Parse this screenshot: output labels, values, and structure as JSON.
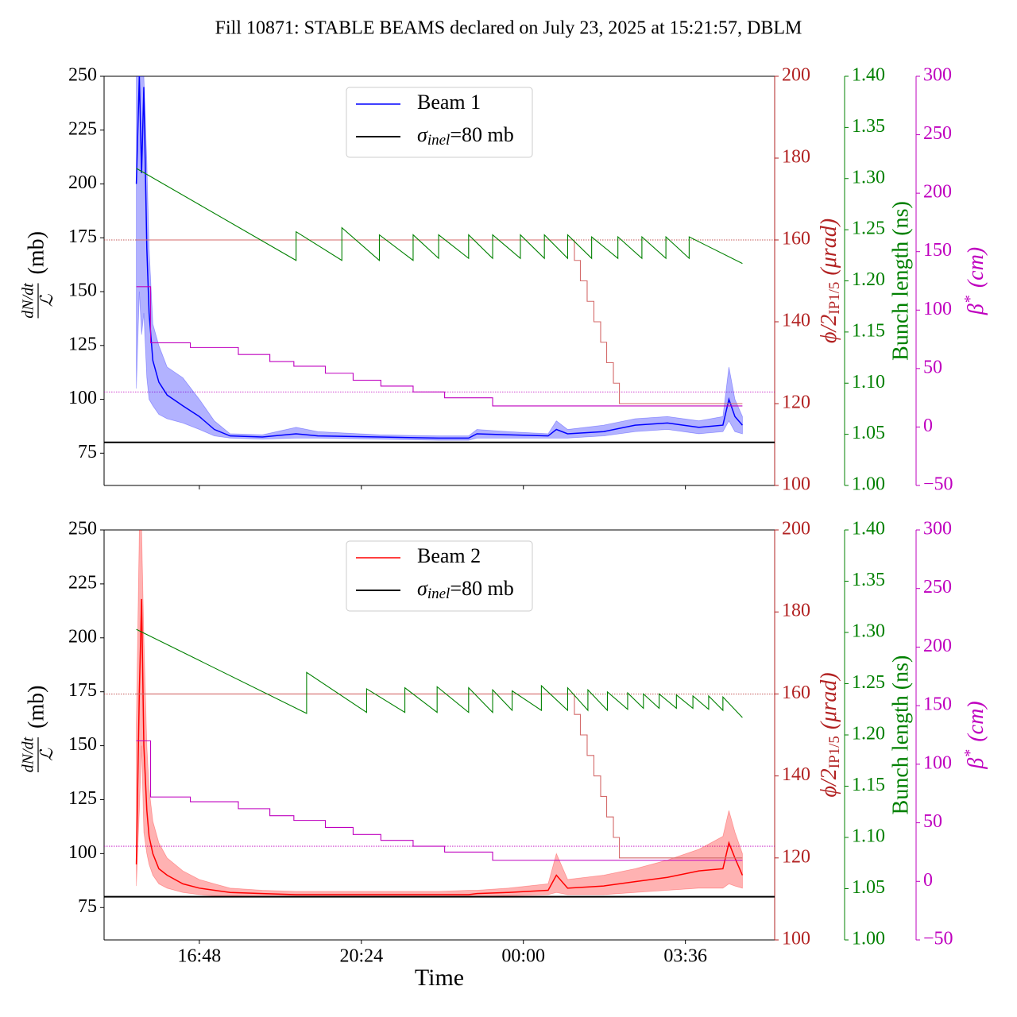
{
  "title": "Fill 10871: STABLE BEAMS declared on July 23, 2025 at 15:21:57, DBLM",
  "chart_data": [
    {
      "type": "line",
      "legend": "upper center",
      "ylabel": {
        "numerator": "dN/dt",
        "denominator": "ℒ",
        "unit": "(mb)"
      },
      "y2label": [
        "ϕ/2",
        "IP1/5",
        "(μrad)"
      ],
      "y3label": "Bunch length (ns)",
      "y4label": [
        "β",
        "*",
        "(cm)"
      ],
      "xlim": [
        "14:41",
        "05:35"
      ],
      "ylim": [
        60,
        250
      ],
      "yticks": [
        75,
        100,
        125,
        150,
        175,
        200,
        225,
        250
      ],
      "y2lim": [
        100,
        200
      ],
      "y2ticks": [
        100,
        120,
        140,
        160,
        180,
        200
      ],
      "y2color": "#b22222",
      "y3lim": [
        1.0,
        1.4
      ],
      "y3ticks": [
        {
          "value": 1.0,
          "label": "1.00"
        },
        {
          "value": 1.05,
          "label": "1.05"
        },
        {
          "value": 1.1,
          "label": "1.10"
        },
        {
          "value": 1.15,
          "label": "1.15"
        },
        {
          "value": 1.2,
          "label": "1.20"
        },
        {
          "value": 1.25,
          "label": "1.25"
        },
        {
          "value": 1.3,
          "label": "1.30"
        },
        {
          "value": 1.35,
          "label": "1.35"
        },
        {
          "value": 1.4,
          "label": "1.40"
        }
      ],
      "y3color": "#008000",
      "y4lim": [
        -50,
        300
      ],
      "y4ticks": [
        {
          "value": -50,
          "label": "−50"
        },
        0,
        50,
        100,
        150,
        200,
        250,
        300
      ],
      "y4color": "#bf00bf",
      "series": [
        {
          "name": "Beam 1",
          "color": "#0000ff",
          "x": [
            "15:24",
            "15:28",
            "15:31",
            "15:34",
            "15:38",
            "15:41",
            "15:46",
            "15:54",
            "16:05",
            "16:26",
            "16:48",
            "17:08",
            "17:29",
            "18:12",
            "18:57",
            "19:26",
            "20:48",
            "22:07",
            "22:47",
            "22:58",
            "23:40",
            "00:33",
            "00:44",
            "00:59",
            "01:47",
            "02:29",
            "03:12",
            "03:54",
            "04:26",
            "04:34",
            "04:42",
            "04:52"
          ],
          "values": [
            200,
            250,
            205,
            245,
            170,
            140,
            118,
            108,
            102,
            97,
            92,
            86,
            83,
            82.5,
            84,
            83,
            82.5,
            82,
            82,
            84,
            83.5,
            83,
            86,
            84,
            85,
            88,
            89,
            87,
            88,
            100,
            92,
            88
          ],
          "low": [
            105,
            150,
            130,
            140,
            110,
            100,
            97,
            93,
            91,
            89,
            86,
            83,
            82,
            81.5,
            82,
            82,
            81.5,
            81,
            81,
            82,
            82,
            82,
            82,
            82,
            83,
            85,
            86,
            84,
            85,
            90,
            85,
            84
          ],
          "high": [
            250,
            250,
            250,
            250,
            210,
            170,
            135,
            125,
            115,
            110,
            100,
            90,
            84,
            83.5,
            87,
            85,
            83.5,
            83,
            83,
            86,
            85,
            84,
            90,
            86,
            88,
            91,
            92,
            90,
            92,
            115,
            100,
            92
          ]
        },
        {
          "color": "#d46a6a",
          "axis": "y2",
          "step": true,
          "x": [
            "15:24",
            "00:59",
            "01:08",
            "01:16",
            "01:25",
            "01:34",
            "01:43",
            "01:51",
            "02:00",
            "02:08",
            "04:52"
          ],
          "values": [
            160,
            160,
            155,
            150,
            145,
            140,
            135,
            130,
            125,
            120,
            120
          ]
        },
        {
          "color": "#008000",
          "axis": "y3",
          "x": [
            "15:24",
            "18:57",
            "18:57",
            "19:58",
            "19:58",
            "20:48",
            "20:48",
            "21:33",
            "21:33",
            "22:07",
            "22:07",
            "22:47",
            "22:47",
            "23:19",
            "23:19",
            "23:56",
            "23:56",
            "00:28",
            "00:28",
            "00:59",
            "00:59",
            "01:31",
            "01:31",
            "02:06",
            "02:06",
            "02:38",
            "02:38",
            "03:10",
            "03:10",
            "03:41",
            "03:41",
            "04:52"
          ],
          "values": [
            1.31,
            1.22,
            1.248,
            1.22,
            1.252,
            1.22,
            1.245,
            1.22,
            1.245,
            1.222,
            1.245,
            1.222,
            1.245,
            1.222,
            1.245,
            1.222,
            1.245,
            1.222,
            1.245,
            1.222,
            1.245,
            1.222,
            1.243,
            1.222,
            1.243,
            1.222,
            1.243,
            1.222,
            1.243,
            1.222,
            1.243,
            1.217
          ]
        },
        {
          "color": "#bf00bf",
          "axis": "y4",
          "step": true,
          "x": [
            "15:24",
            "15:43",
            "16:36",
            "17:40",
            "18:22",
            "18:54",
            "19:36",
            "20:13",
            "20:50",
            "21:33",
            "22:15",
            "23:19",
            "04:52"
          ],
          "values": [
            120,
            72,
            68,
            62,
            56,
            52,
            46,
            40,
            35,
            30,
            25,
            18,
            18
          ]
        }
      ],
      "reference": {
        "name_parts": [
          "σ",
          "inel",
          "=80 mb"
        ],
        "value": 80,
        "color": "#000000"
      },
      "hlines": [
        {
          "axis": "y2",
          "value": 160,
          "color": "#b22222"
        },
        {
          "axis": "y4",
          "value": 30,
          "color": "#bf00bf"
        }
      ]
    },
    {
      "type": "line",
      "legend": "upper center",
      "ylabel": {
        "numerator": "dN/dt",
        "denominator": "ℒ",
        "unit": "(mb)"
      },
      "y2label": [
        "ϕ/2",
        "IP1/5",
        "(μrad)"
      ],
      "y3label": "Bunch length (ns)",
      "y4label": [
        "β",
        "*",
        "(cm)"
      ],
      "xlabel": "Time",
      "xlim": [
        "14:41",
        "05:35"
      ],
      "xticks": [
        "16:48",
        "20:24",
        "00:00",
        "03:36"
      ],
      "ylim": [
        60,
        250
      ],
      "yticks": [
        75,
        100,
        125,
        150,
        175,
        200,
        225,
        250
      ],
      "y2lim": [
        100,
        200
      ],
      "y2ticks": [
        100,
        120,
        140,
        160,
        180,
        200
      ],
      "y2color": "#b22222",
      "y3lim": [
        1.0,
        1.4
      ],
      "y3ticks": [
        {
          "value": 1.0,
          "label": "1.00"
        },
        {
          "value": 1.05,
          "label": "1.05"
        },
        {
          "value": 1.1,
          "label": "1.10"
        },
        {
          "value": 1.15,
          "label": "1.15"
        },
        {
          "value": 1.2,
          "label": "1.20"
        },
        {
          "value": 1.25,
          "label": "1.25"
        },
        {
          "value": 1.3,
          "label": "1.30"
        },
        {
          "value": 1.35,
          "label": "1.35"
        },
        {
          "value": 1.4,
          "label": "1.40"
        }
      ],
      "y3color": "#008000",
      "y4lim": [
        -50,
        300
      ],
      "y4ticks": [
        {
          "value": -50,
          "label": "−50"
        },
        0,
        50,
        100,
        150,
        200,
        250,
        300
      ],
      "y4color": "#bf00bf",
      "series": [
        {
          "name": "Beam 2",
          "color": "#ff0000",
          "x": [
            "15:24",
            "15:28",
            "15:31",
            "15:34",
            "15:38",
            "15:41",
            "15:46",
            "15:54",
            "16:05",
            "16:26",
            "16:48",
            "17:08",
            "17:29",
            "18:12",
            "18:57",
            "19:26",
            "20:48",
            "22:07",
            "22:47",
            "22:58",
            "23:40",
            "00:33",
            "00:44",
            "00:59",
            "01:47",
            "02:29",
            "03:12",
            "03:54",
            "04:26",
            "04:34",
            "04:42",
            "04:52"
          ],
          "values": [
            95,
            175,
            218,
            150,
            120,
            108,
            100,
            93,
            90,
            86,
            84,
            83,
            82,
            81.5,
            81,
            81,
            81,
            81,
            81,
            81.5,
            82,
            83,
            90,
            84,
            85,
            87,
            89,
            92,
            93,
            105,
            98,
            90
          ],
          "low": [
            85,
            120,
            150,
            110,
            100,
            95,
            90,
            86,
            84,
            82,
            81,
            80.5,
            80.5,
            80,
            80,
            80,
            80,
            80,
            80,
            80,
            80.5,
            81,
            82,
            81,
            81,
            82,
            83,
            84,
            84,
            86,
            85,
            84
          ],
          "high": [
            160,
            250,
            250,
            200,
            150,
            130,
            115,
            105,
            98,
            92,
            88,
            86,
            84,
            83,
            82.5,
            82.5,
            82.5,
            82.5,
            83,
            83,
            84,
            86,
            100,
            88,
            90,
            93,
            97,
            102,
            108,
            120,
            110,
            100
          ]
        },
        {
          "color": "#d46a6a",
          "axis": "y2",
          "step": true,
          "x": [
            "15:24",
            "00:59",
            "01:08",
            "01:16",
            "01:25",
            "01:34",
            "01:43",
            "01:51",
            "02:00",
            "02:08",
            "04:52"
          ],
          "values": [
            160,
            160,
            155,
            150,
            145,
            140,
            135,
            130,
            125,
            120,
            120
          ]
        },
        {
          "color": "#008000",
          "axis": "y3",
          "x": [
            "15:24",
            "19:11",
            "19:11",
            "20:31",
            "20:31",
            "21:22",
            "21:22",
            "22:05",
            "22:05",
            "22:47",
            "22:47",
            "23:19",
            "23:19",
            "23:45",
            "23:45",
            "00:24",
            "00:24",
            "00:59",
            "00:59",
            "01:26",
            "01:26",
            "01:52",
            "01:52",
            "02:19",
            "02:19",
            "02:40",
            "02:40",
            "03:01",
            "03:01",
            "03:24",
            "03:24",
            "03:46",
            "03:46",
            "04:07",
            "04:07",
            "04:26",
            "04:26",
            "04:52"
          ],
          "values": [
            1.303,
            1.221,
            1.261,
            1.222,
            1.245,
            1.222,
            1.246,
            1.222,
            1.247,
            1.222,
            1.246,
            1.222,
            1.244,
            1.224,
            1.243,
            1.224,
            1.248,
            1.224,
            1.246,
            1.224,
            1.244,
            1.224,
            1.242,
            1.225,
            1.241,
            1.226,
            1.24,
            1.226,
            1.24,
            1.226,
            1.239,
            1.226,
            1.238,
            1.225,
            1.238,
            1.224,
            1.237,
            1.217
          ]
        },
        {
          "color": "#bf00bf",
          "axis": "y4",
          "step": true,
          "x": [
            "15:24",
            "15:43",
            "16:36",
            "17:40",
            "18:22",
            "18:54",
            "19:36",
            "20:13",
            "20:50",
            "21:33",
            "22:15",
            "23:19",
            "04:52"
          ],
          "values": [
            120,
            72,
            68,
            62,
            56,
            52,
            46,
            40,
            35,
            30,
            25,
            18,
            18
          ]
        }
      ],
      "reference": {
        "name_parts": [
          "σ",
          "inel",
          "=80 mb"
        ],
        "value": 80,
        "color": "#000000"
      },
      "hlines": [
        {
          "axis": "y2",
          "value": 160,
          "color": "#b22222"
        },
        {
          "axis": "y4",
          "value": 30,
          "color": "#bf00bf"
        }
      ]
    }
  ]
}
